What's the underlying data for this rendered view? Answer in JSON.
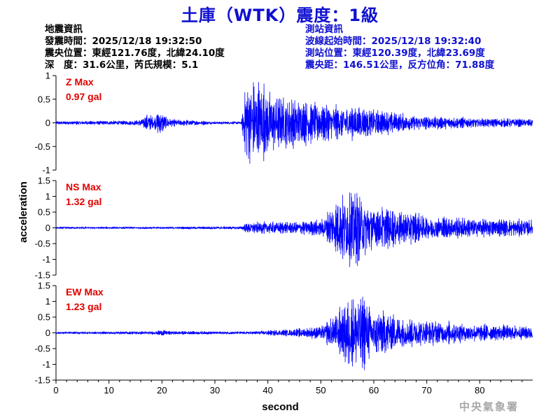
{
  "title": "土庫（WTK）震度：1級",
  "quake_info": {
    "heading": "地震資訊",
    "time": "發震時間：2025/12/18 19:32:50",
    "location": "震央位置：東經121.76度，北緯24.10度",
    "depth_magnitude": "深　度：31.6公里，芮氏規模：5.1"
  },
  "station_info": {
    "heading": "測站資訊",
    "wave_start": "波線起始時間：2025/12/18 19:32:40",
    "location": "測站位置：東經120.39度，北緯23.69度",
    "distance_azimuth": "震央距：146.51公里，反方位角：71.88度"
  },
  "credit": "中央氣象署",
  "colors": {
    "trace": "#0000ff",
    "max_label": "#e00000",
    "title": "#1010d0",
    "axes": "#000000"
  },
  "chart_data": {
    "type": "line",
    "xlabel": "second",
    "ylabel": "acceleration",
    "xlim": [
      0,
      90
    ],
    "xticks": [
      "0",
      "10",
      "20",
      "30",
      "40",
      "50",
      "60",
      "70",
      "80"
    ],
    "grid": false,
    "panels": [
      {
        "name": "Z Max",
        "max_value": "0.97 gal",
        "ylim": [
          -1,
          1
        ],
        "yticks": [
          "1",
          "0.5",
          "0",
          "-0.5",
          "-1"
        ],
        "envelope": [
          [
            0,
            0.04
          ],
          [
            15,
            0.05
          ],
          [
            16.5,
            0.12
          ],
          [
            17.5,
            0.2
          ],
          [
            18.5,
            0.1
          ],
          [
            19.5,
            0.28
          ],
          [
            20.5,
            0.15
          ],
          [
            22,
            0.08
          ],
          [
            30,
            0.03
          ],
          [
            35,
            0.03
          ],
          [
            35.8,
            0.9
          ],
          [
            38,
            0.95
          ],
          [
            40,
            0.7
          ],
          [
            45,
            0.5
          ],
          [
            50,
            0.4
          ],
          [
            55,
            0.35
          ],
          [
            60,
            0.3
          ],
          [
            65,
            0.2
          ],
          [
            70,
            0.15
          ],
          [
            80,
            0.1
          ],
          [
            90,
            0.08
          ]
        ]
      },
      {
        "name": "NS Max",
        "max_value": "1.32 gal",
        "ylim": [
          -1.5,
          1.5
        ],
        "yticks": [
          "1.5",
          "1",
          "0.5",
          "0",
          "-0.5",
          "-1",
          "-1.5"
        ],
        "envelope": [
          [
            0,
            0.03
          ],
          [
            20,
            0.03
          ],
          [
            35,
            0.05
          ],
          [
            36,
            0.18
          ],
          [
            45,
            0.2
          ],
          [
            50,
            0.25
          ],
          [
            53.5,
            0.9
          ],
          [
            55.5,
            1.32
          ],
          [
            58,
            1.0
          ],
          [
            60,
            0.7
          ],
          [
            65,
            0.55
          ],
          [
            70,
            0.4
          ],
          [
            80,
            0.3
          ],
          [
            90,
            0.25
          ]
        ]
      },
      {
        "name": "EW Max",
        "max_value": "1.23 gal",
        "ylim": [
          -1.5,
          1.5
        ],
        "yticks": [
          "1.5",
          "1",
          "0.5",
          "0",
          "-0.5",
          "-1",
          "-1.5"
        ],
        "envelope": [
          [
            0,
            0.03
          ],
          [
            19,
            0.05
          ],
          [
            20,
            0.12
          ],
          [
            21,
            0.06
          ],
          [
            35,
            0.04
          ],
          [
            45,
            0.12
          ],
          [
            50,
            0.2
          ],
          [
            53,
            0.6
          ],
          [
            55,
            1.1
          ],
          [
            57,
            1.23
          ],
          [
            60,
            0.8
          ],
          [
            65,
            0.5
          ],
          [
            70,
            0.4
          ],
          [
            80,
            0.28
          ],
          [
            90,
            0.22
          ]
        ]
      }
    ]
  }
}
